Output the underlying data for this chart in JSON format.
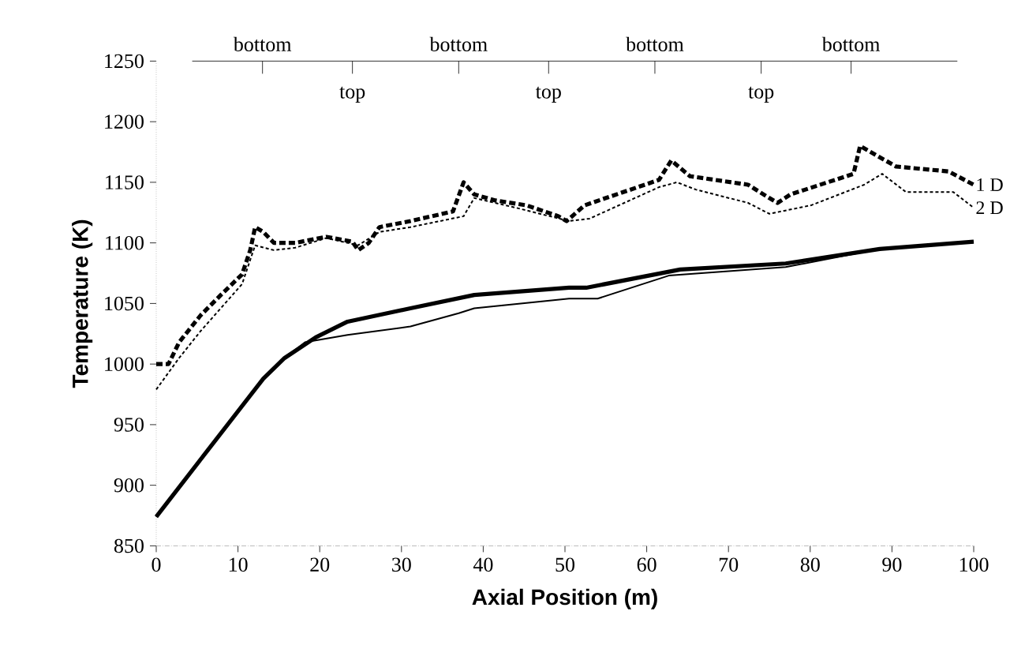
{
  "chart_data": {
    "type": "line",
    "xlabel": "Axial Position (m)",
    "ylabel": "Temperature (K)",
    "xlim": [
      0,
      100
    ],
    "xticks": [
      0,
      10,
      20,
      30,
      40,
      50,
      60,
      70,
      80,
      90,
      100
    ],
    "ylim": [
      850,
      1250
    ],
    "yticks": [
      850,
      900,
      950,
      1000,
      1050,
      1100,
      1150,
      1200,
      1250
    ],
    "grid": false,
    "legend": false,
    "marker": "none",
    "series": [
      {
        "name": "1 D",
        "color": "#000000",
        "line_style": "dashed",
        "x": [
          0,
          1.5,
          2.8,
          5.4,
          7.9,
          10.5,
          11.5,
          12.1,
          13.1,
          14.4,
          17,
          20.8,
          24,
          24.7,
          26,
          27.3,
          31.1,
          36.3,
          37.6,
          38.9,
          41.5,
          45.3,
          49.2,
          50.2,
          52.4,
          61.5,
          63,
          65.3,
          72.4,
          75,
          76,
          77.6,
          85.3,
          86.1,
          90.5,
          96.9,
          100
        ],
        "values": [
          1000,
          1000,
          1018,
          1040,
          1057,
          1074,
          1094,
          1113,
          1109,
          1100,
          1100,
          1105,
          1101,
          1094,
          1100,
          1113,
          1118,
          1126,
          1150,
          1140,
          1135,
          1131,
          1122,
          1118,
          1131,
          1152,
          1168,
          1155,
          1148,
          1137,
          1133,
          1140,
          1157,
          1180,
          1163,
          1159,
          1148
        ]
      },
      {
        "name": "2 D",
        "color": "#000000",
        "line_style": "dotted",
        "x": [
          0,
          2.8,
          5.4,
          10.5,
          12.1,
          14.4,
          17,
          20.8,
          24.7,
          27.3,
          31.1,
          37.6,
          38.9,
          44,
          50.5,
          53,
          61.5,
          63.7,
          66,
          72.4,
          75,
          80.1,
          86.6,
          88.8,
          91.7,
          97.5,
          100
        ],
        "values": [
          979,
          1005,
          1027,
          1066,
          1098,
          1094,
          1096,
          1104,
          1098,
          1109,
          1113,
          1122,
          1137,
          1129,
          1118,
          1120,
          1146,
          1150,
          1144,
          1133,
          1124,
          1131,
          1148,
          1157,
          1142,
          1142,
          1129
        ]
      },
      {
        "color": "#000000",
        "line_style": "solid",
        "x": [
          0,
          13.1,
          15.7,
          19.5,
          23.4,
          31.1,
          38.9,
          50.5,
          52.6,
          64.1,
          77,
          88.5,
          100
        ],
        "values": [
          874,
          988,
          1005,
          1022,
          1035,
          1046,
          1057,
          1063,
          1063,
          1078,
          1083,
          1095,
          1101
        ]
      },
      {
        "color": "#000000",
        "line_style": "solid",
        "x": [
          0,
          13.1,
          15.7,
          18.2,
          23.4,
          31.1,
          37,
          38.9,
          50.5,
          54,
          62.7,
          77,
          88.5,
          100
        ],
        "values": [
          874,
          988,
          1005,
          1018,
          1024,
          1031,
          1042,
          1046,
          1054,
          1054,
          1073,
          1080,
          1095,
          1101
        ]
      }
    ],
    "ref_lines": [
      {
        "axis": "y",
        "value": 1250
      }
    ],
    "annotations": [
      {
        "text": "bottom",
        "x": 13,
        "y": 1250
      },
      {
        "text": "top",
        "x": 24,
        "y": 1250
      },
      {
        "text": "bottom",
        "x": 37,
        "y": 1250
      },
      {
        "text": "top",
        "x": 48,
        "y": 1250
      },
      {
        "text": "bottom",
        "x": 61,
        "y": 1250
      },
      {
        "text": "top",
        "x": 74,
        "y": 1250
      },
      {
        "text": "bottom",
        "x": 85,
        "y": 1250
      }
    ]
  }
}
